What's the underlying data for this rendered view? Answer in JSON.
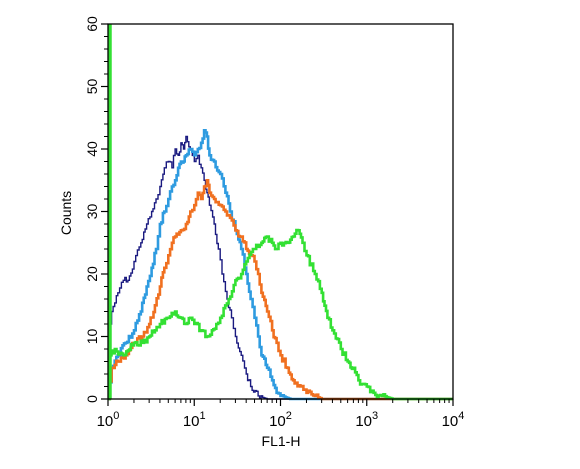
{
  "chart_data": {
    "type": "line",
    "xlabel": "FL1-H",
    "ylabel": "Counts",
    "xscale": "log",
    "xlim": [
      1,
      10000
    ],
    "ylim": [
      0,
      60
    ],
    "x_ticks": [
      {
        "value": 1,
        "base": "10",
        "exp": "0"
      },
      {
        "value": 10,
        "base": "10",
        "exp": "1"
      },
      {
        "value": 100,
        "base": "10",
        "exp": "2"
      },
      {
        "value": 1000,
        "base": "10",
        "exp": "3"
      },
      {
        "value": 10000,
        "base": "10",
        "exp": "4"
      }
    ],
    "y_ticks": [
      0,
      10,
      20,
      30,
      40,
      50,
      60
    ],
    "grid": false,
    "legend": "none",
    "series": [
      {
        "color": "#1a1a80",
        "points": [
          [
            1.0,
            0
          ],
          [
            1.05,
            12
          ],
          [
            1.1,
            14
          ],
          [
            1.3,
            17
          ],
          [
            1.5,
            19
          ],
          [
            1.7,
            19
          ],
          [
            2.0,
            22
          ],
          [
            2.4,
            25
          ],
          [
            2.8,
            28
          ],
          [
            3.2,
            30
          ],
          [
            3.6,
            32
          ],
          [
            4.0,
            34
          ],
          [
            4.5,
            37
          ],
          [
            5.0,
            38
          ],
          [
            5.5,
            37
          ],
          [
            6.0,
            40
          ],
          [
            6.5,
            39
          ],
          [
            7.0,
            41
          ],
          [
            7.5,
            40
          ],
          [
            8.0,
            42
          ],
          [
            9.0,
            40
          ],
          [
            10,
            38
          ],
          [
            11,
            39
          ],
          [
            12,
            37
          ],
          [
            13,
            35
          ],
          [
            14,
            33
          ],
          [
            15,
            31
          ],
          [
            17,
            28
          ],
          [
            19,
            24
          ],
          [
            21,
            20
          ],
          [
            24,
            16
          ],
          [
            27,
            13
          ],
          [
            30,
            10
          ],
          [
            35,
            7
          ],
          [
            40,
            4
          ],
          [
            45,
            2
          ],
          [
            55,
            0.5
          ],
          [
            70,
            0
          ]
        ]
      },
      {
        "color": "#2e9be0",
        "points": [
          [
            1.0,
            0
          ],
          [
            1.1,
            5
          ],
          [
            1.3,
            7
          ],
          [
            1.6,
            9
          ],
          [
            2.0,
            11
          ],
          [
            2.4,
            14
          ],
          [
            2.8,
            18
          ],
          [
            3.2,
            21
          ],
          [
            3.6,
            24
          ],
          [
            4.0,
            28
          ],
          [
            4.5,
            30
          ],
          [
            5.0,
            32
          ],
          [
            5.5,
            34
          ],
          [
            6.0,
            35
          ],
          [
            6.5,
            37
          ],
          [
            7.0,
            38
          ],
          [
            7.5,
            38
          ],
          [
            8.0,
            39
          ],
          [
            9.0,
            40
          ],
          [
            10,
            39
          ],
          [
            11,
            40
          ],
          [
            12,
            41
          ],
          [
            13,
            43
          ],
          [
            14,
            42
          ],
          [
            15,
            39
          ],
          [
            17,
            38
          ],
          [
            20,
            36
          ],
          [
            23,
            33
          ],
          [
            26,
            30
          ],
          [
            30,
            27
          ],
          [
            35,
            24
          ],
          [
            40,
            20
          ],
          [
            45,
            16
          ],
          [
            50,
            13
          ],
          [
            55,
            10
          ],
          [
            60,
            7
          ],
          [
            70,
            5
          ],
          [
            80,
            3
          ],
          [
            90,
            1
          ],
          [
            100,
            0.5
          ],
          [
            130,
            0
          ]
        ]
      },
      {
        "color": "#f07020",
        "points": [
          [
            1.0,
            0
          ],
          [
            1.1,
            5
          ],
          [
            1.3,
            6
          ],
          [
            1.6,
            7
          ],
          [
            2.0,
            9
          ],
          [
            2.5,
            10
          ],
          [
            3.0,
            12
          ],
          [
            3.5,
            15
          ],
          [
            4.0,
            18
          ],
          [
            4.5,
            21
          ],
          [
            5.0,
            23
          ],
          [
            5.5,
            25
          ],
          [
            6.0,
            26
          ],
          [
            7.0,
            27
          ],
          [
            8.0,
            28
          ],
          [
            9.0,
            30
          ],
          [
            10,
            31
          ],
          [
            11,
            33
          ],
          [
            12,
            32
          ],
          [
            13,
            34
          ],
          [
            14,
            35
          ],
          [
            15,
            33
          ],
          [
            17,
            32
          ],
          [
            20,
            31
          ],
          [
            23,
            30
          ],
          [
            26,
            29
          ],
          [
            30,
            27
          ],
          [
            35,
            26
          ],
          [
            40,
            24
          ],
          [
            45,
            23
          ],
          [
            50,
            22
          ],
          [
            55,
            20
          ],
          [
            60,
            17
          ],
          [
            70,
            14
          ],
          [
            80,
            11
          ],
          [
            90,
            9
          ],
          [
            100,
            7
          ],
          [
            120,
            5
          ],
          [
            140,
            3
          ],
          [
            170,
            2
          ],
          [
            200,
            1
          ],
          [
            250,
            0.5
          ],
          [
            300,
            0
          ]
        ]
      },
      {
        "color": "#33e033",
        "points": [
          [
            1.0,
            0
          ],
          [
            1.05,
            7
          ],
          [
            1.2,
            8
          ],
          [
            1.5,
            7
          ],
          [
            2.0,
            9
          ],
          [
            2.5,
            9
          ],
          [
            3.0,
            10
          ],
          [
            3.5,
            11
          ],
          [
            4.0,
            12
          ],
          [
            5.0,
            13
          ],
          [
            6.0,
            14
          ],
          [
            7.0,
            13
          ],
          [
            8.0,
            12
          ],
          [
            9.0,
            13
          ],
          [
            10,
            12
          ],
          [
            12,
            11
          ],
          [
            14,
            10
          ],
          [
            16,
            11
          ],
          [
            18,
            12
          ],
          [
            20,
            13
          ],
          [
            25,
            16
          ],
          [
            30,
            19
          ],
          [
            35,
            20
          ],
          [
            40,
            22
          ],
          [
            50,
            24
          ],
          [
            60,
            25
          ],
          [
            70,
            26
          ],
          [
            80,
            25
          ],
          [
            90,
            24
          ],
          [
            100,
            25
          ],
          [
            120,
            25
          ],
          [
            140,
            26
          ],
          [
            160,
            27
          ],
          [
            180,
            25
          ],
          [
            200,
            23
          ],
          [
            250,
            20
          ],
          [
            300,
            17
          ],
          [
            350,
            13
          ],
          [
            400,
            11
          ],
          [
            500,
            8
          ],
          [
            600,
            6
          ],
          [
            700,
            5
          ],
          [
            800,
            3
          ],
          [
            1000,
            2
          ],
          [
            1200,
            1
          ],
          [
            1500,
            0.5
          ],
          [
            2000,
            0
          ]
        ]
      }
    ]
  }
}
